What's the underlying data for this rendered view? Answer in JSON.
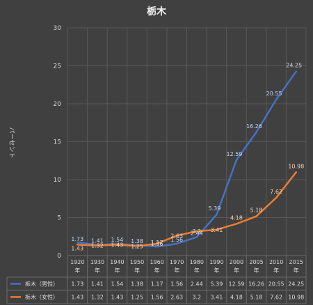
{
  "chart_data": {
    "type": "line",
    "title": "栃木",
    "ylabel": "パーセント",
    "xlabel": "",
    "ylim": [
      0,
      30
    ],
    "yticks": [
      0,
      5,
      10,
      15,
      20,
      25,
      30
    ],
    "grid": true,
    "legend_placement": "data-table",
    "categories": [
      "1920",
      "1930",
      "1940",
      "1950",
      "1960",
      "1970",
      "1980",
      "1990",
      "2000",
      "2005",
      "2010",
      "2015"
    ],
    "category_suffix": "年",
    "series": [
      {
        "name": "栃木（男性）",
        "color": "#4472c4",
        "values": [
          1.73,
          1.41,
          1.54,
          1.38,
          1.17,
          1.56,
          2.44,
          5.39,
          12.59,
          16.26,
          20.55,
          24.25
        ]
      },
      {
        "name": "栃木（女性）",
        "color": "#ed7d31",
        "values": [
          1.43,
          1.32,
          1.43,
          1.25,
          1.56,
          2.63,
          3.2,
          3.41,
          4.18,
          5.18,
          7.62,
          10.98
        ]
      }
    ]
  }
}
